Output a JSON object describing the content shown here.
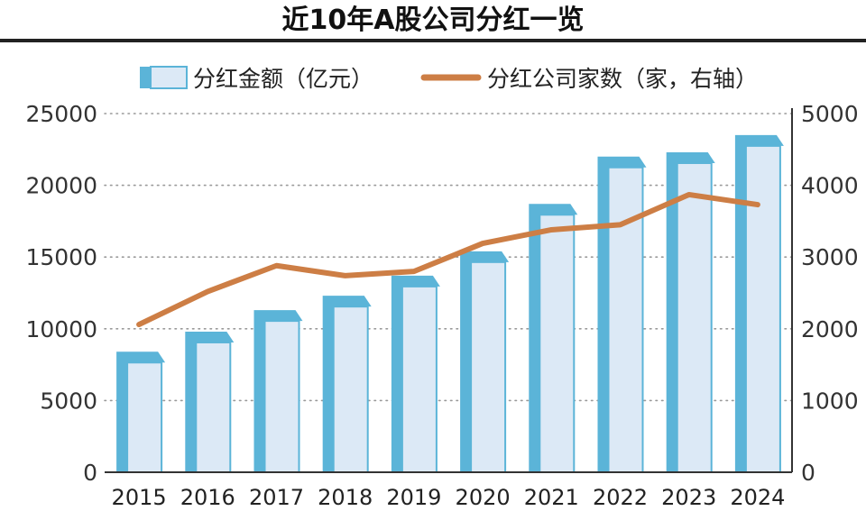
{
  "chart_data": {
    "type": "bar",
    "title": "近10年A股公司分红一览",
    "categories": [
      "2015",
      "2016",
      "2017",
      "2018",
      "2019",
      "2020",
      "2021",
      "2022",
      "2023",
      "2024"
    ],
    "series": [
      {
        "name": "分红金额（亿元）",
        "type": "bar",
        "axis": "left",
        "values": [
          8400,
          9800,
          11300,
          12300,
          13700,
          15400,
          18700,
          22000,
          22300,
          23500
        ]
      },
      {
        "name": "分红公司家数（家，右轴）",
        "type": "line",
        "axis": "right",
        "values": [
          2060,
          2520,
          2880,
          2740,
          2800,
          3190,
          3380,
          3450,
          3870,
          3730
        ]
      }
    ],
    "left_axis": {
      "min": 0,
      "max": 25000,
      "ticks": [
        "0",
        "5000",
        "10000",
        "15000",
        "20000",
        "25000"
      ]
    },
    "right_axis": {
      "min": 0,
      "max": 5000,
      "ticks": [
        "0",
        "1000",
        "2000",
        "3000",
        "4000",
        "5000"
      ]
    },
    "grid": true,
    "legend_position": "top",
    "colors": {
      "bar_top": "#5bb4d8",
      "bar_front": "#dce9f6",
      "bar_side": "#5bb4d8",
      "line": "#cd7e45",
      "grid": "#999999",
      "axis": "#333333",
      "title_rule": "#222222"
    }
  }
}
